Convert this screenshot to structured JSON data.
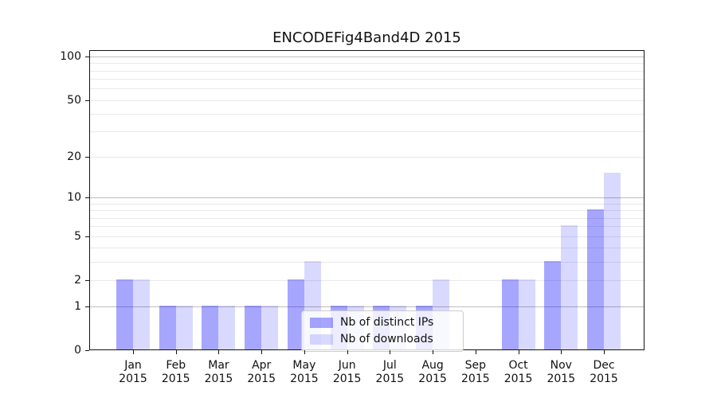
{
  "chart_data": {
    "type": "bar",
    "title": "ENCODEFig4Band4D 2015",
    "categories": [
      "Jan",
      "Feb",
      "Mar",
      "Apr",
      "May",
      "Jun",
      "Jul",
      "Aug",
      "Sep",
      "Oct",
      "Nov",
      "Dec"
    ],
    "category_year": "2015",
    "series": [
      {
        "name": "Nb of distinct IPs",
        "color": "rgba(0,0,255,0.35)",
        "color_hex_on_white": "#a6a6ff",
        "values": [
          2,
          1,
          1,
          1,
          2,
          1,
          1,
          1,
          0,
          2,
          3,
          8
        ]
      },
      {
        "name": "Nb of downloads",
        "color": "rgba(0,0,255,0.15)",
        "color_hex_on_white": "#d9d9ff",
        "values": [
          2,
          1,
          1,
          1,
          3,
          1,
          1,
          2,
          0,
          2,
          6,
          15
        ]
      }
    ],
    "yticks": [
      0,
      1,
      2,
      5,
      10,
      20,
      50,
      100
    ],
    "major_gridlines": [
      1,
      10,
      100
    ],
    "minor_gridlines": [
      2,
      3,
      4,
      5,
      6,
      7,
      8,
      9,
      20,
      30,
      40,
      50,
      60,
      70,
      80,
      90
    ],
    "yscale": "log10(1+x)",
    "ylim": [
      0,
      111
    ],
    "grid": true,
    "legend_position": "lower center",
    "xlabel": "",
    "ylabel": ""
  }
}
